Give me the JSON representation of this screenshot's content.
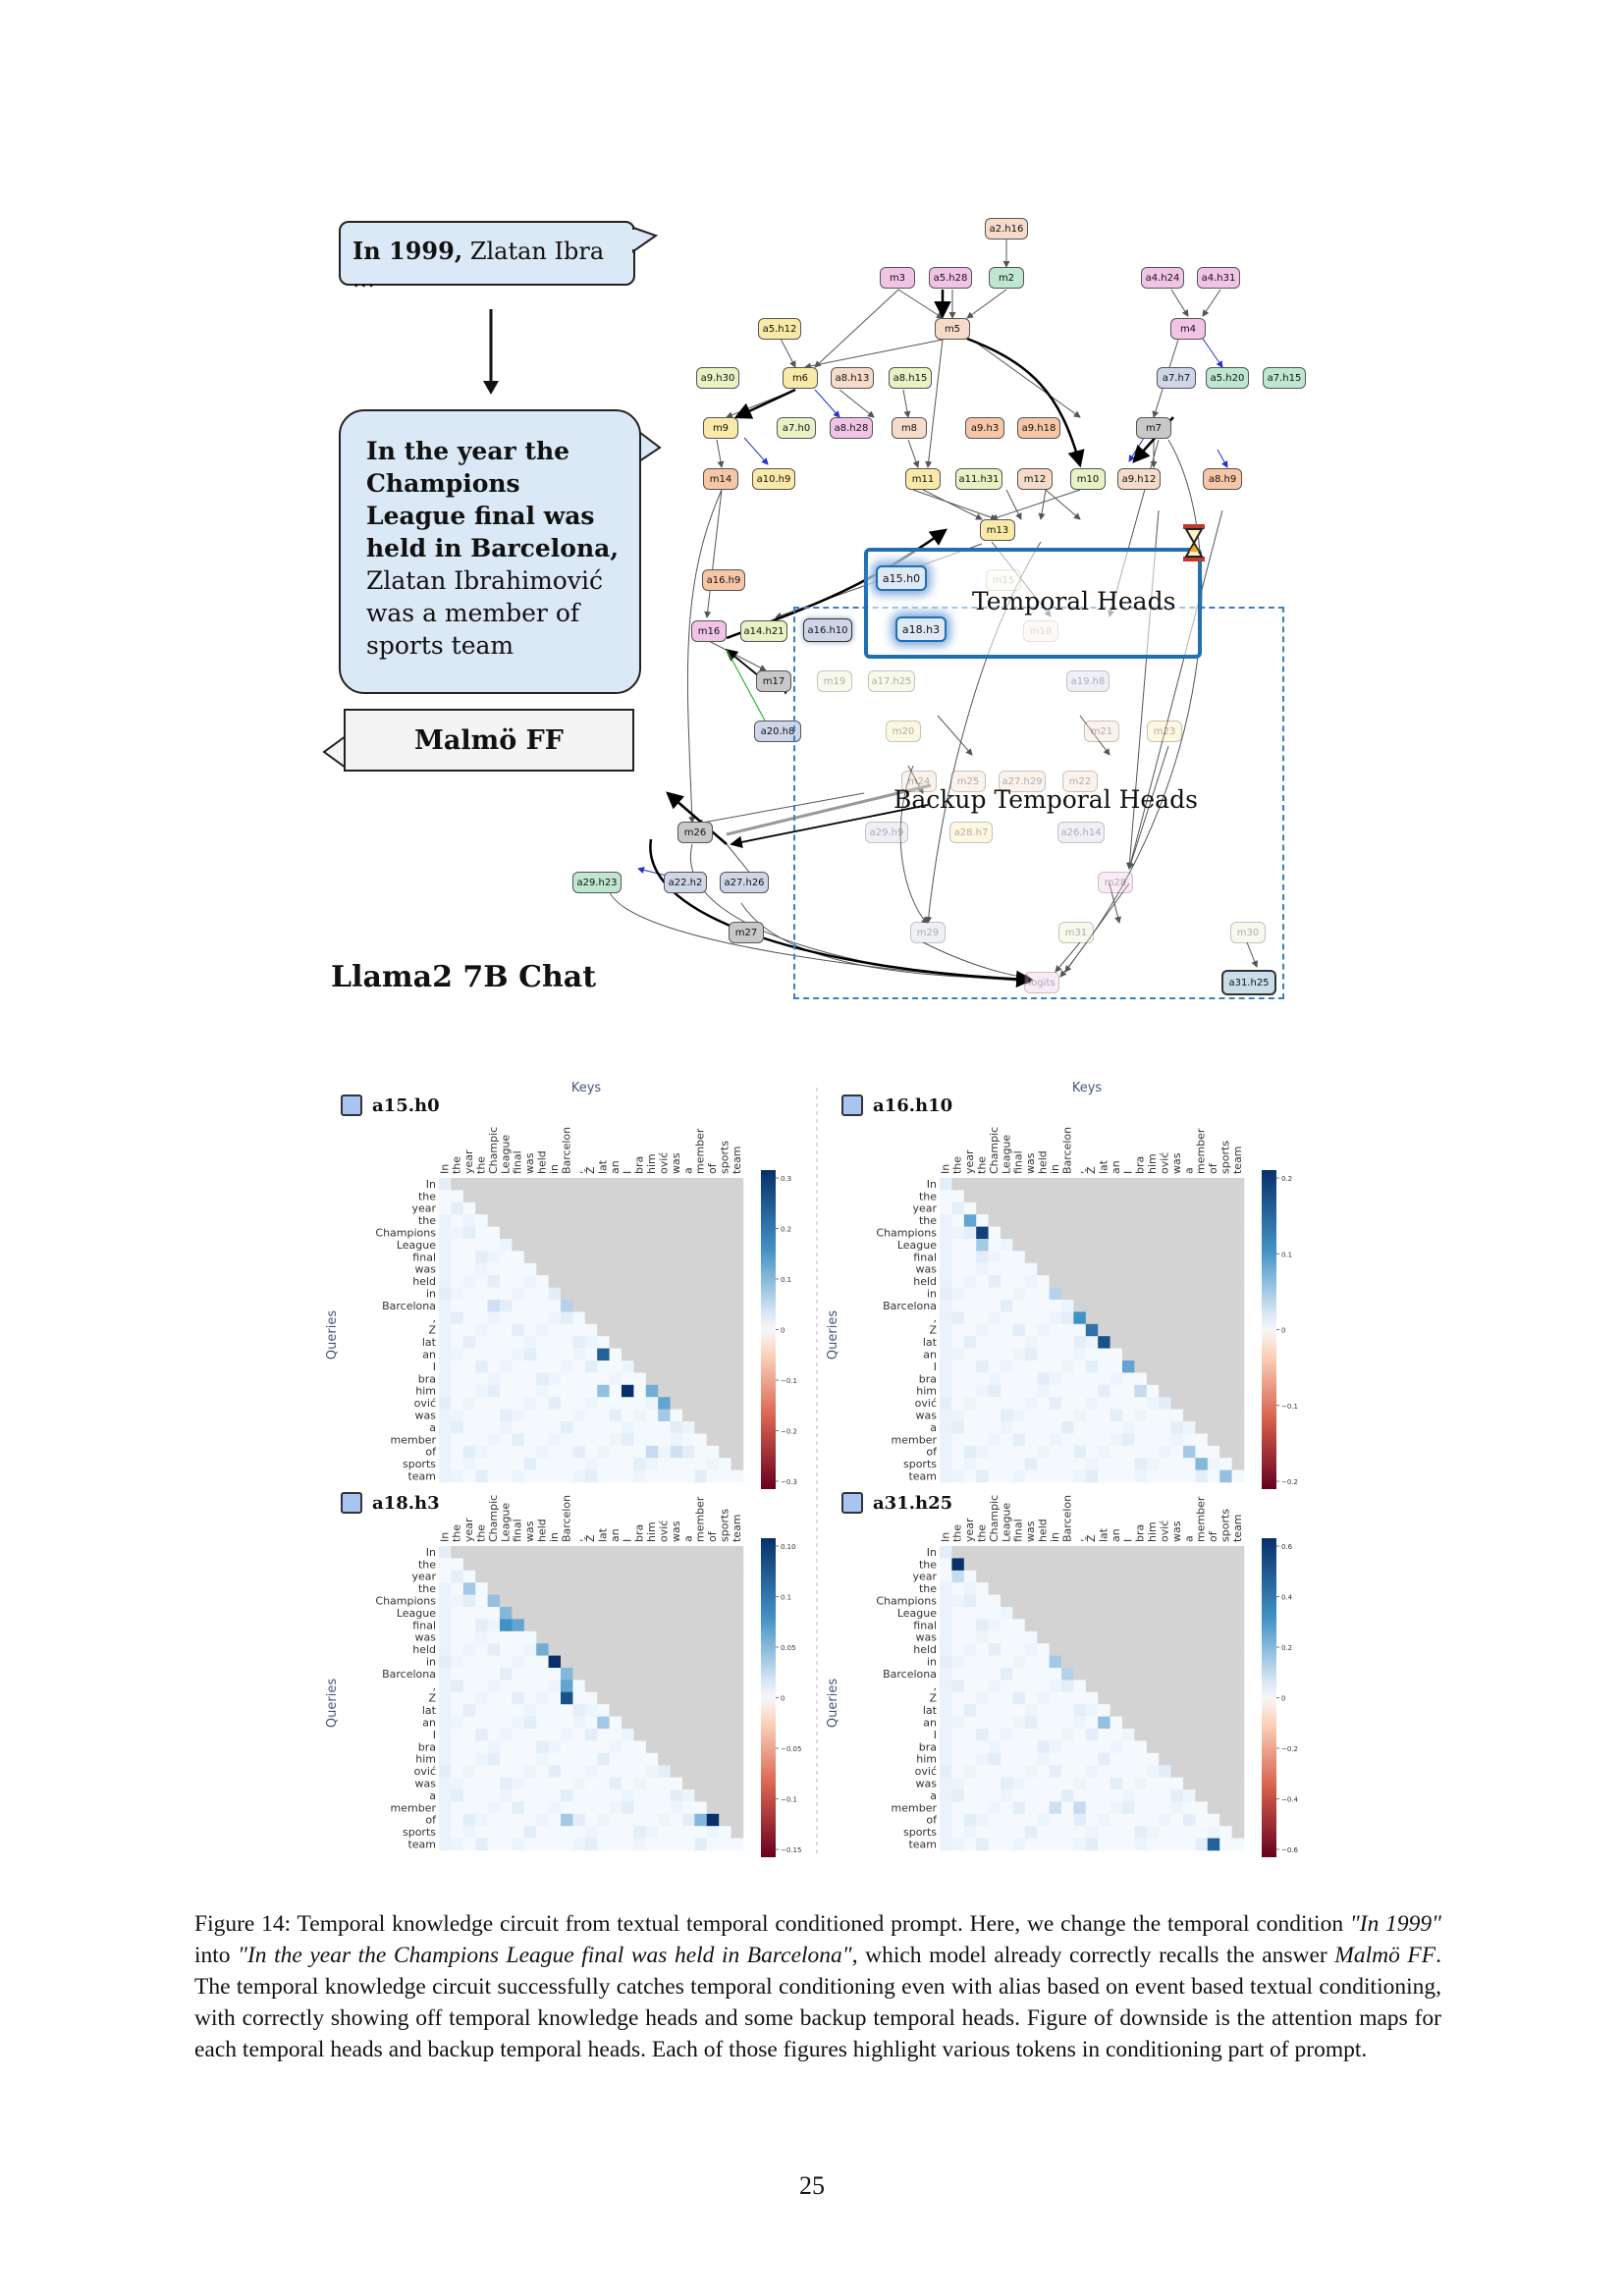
{
  "prompt": {
    "original_bold": "In 1999,",
    "original_rest": " Zlatan Ibra ...",
    "rewritten_bold": "In the year the Champions League final was held in Barcelona,",
    "rewritten_rest": " Zlatan Ibrahimović was a member of sports team",
    "answer": "Malmö FF"
  },
  "model_label": "Llama2 7B Chat",
  "circuit": {
    "temporal_heads_label": "Temporal Heads",
    "backup_heads_label": "Backup Temporal Heads",
    "temporal_nodes": [
      "a15.h0",
      "a18.h3"
    ],
    "nodes": [
      {
        "id": "a2.h16",
        "color": "#f6dcc8"
      },
      {
        "id": "m3",
        "color": "#f1c4e6"
      },
      {
        "id": "a5.h28",
        "color": "#f1c4e6"
      },
      {
        "id": "m2",
        "color": "#bfe6cf"
      },
      {
        "id": "a4.h24",
        "color": "#f1c4e6"
      },
      {
        "id": "a4.h31",
        "color": "#f1c4e6"
      },
      {
        "id": "a5.h12",
        "color": "#fbeaa7"
      },
      {
        "id": "m5",
        "color": "#f6dcc8"
      },
      {
        "id": "m4",
        "color": "#f1c4e6"
      },
      {
        "id": "a9.h30",
        "color": "#e7f3c5"
      },
      {
        "id": "m6",
        "color": "#fbeaa7"
      },
      {
        "id": "a8.h13",
        "color": "#f6dcc8"
      },
      {
        "id": "a8.h15",
        "color": "#e7f3c5"
      },
      {
        "id": "a7.h7",
        "color": "#cfd6e8"
      },
      {
        "id": "a5.h20",
        "color": "#bfe6cf"
      },
      {
        "id": "a7.h15",
        "color": "#bfe6cf"
      },
      {
        "id": "m9",
        "color": "#fbeaa7"
      },
      {
        "id": "a7.h0",
        "color": "#e7f3c5"
      },
      {
        "id": "a8.h28",
        "color": "#f1c4e6"
      },
      {
        "id": "m8",
        "color": "#f6dcc8"
      },
      {
        "id": "a9.h3",
        "color": "#f6c6a6"
      },
      {
        "id": "a9.h18",
        "color": "#f6c6a6"
      },
      {
        "id": "m7",
        "color": "#c8c8c8"
      },
      {
        "id": "m14",
        "color": "#f6c6a6"
      },
      {
        "id": "a10.h9",
        "color": "#fbeaa7"
      },
      {
        "id": "m11",
        "color": "#fbeaa7"
      },
      {
        "id": "a11.h31",
        "color": "#e7f3c5"
      },
      {
        "id": "m12",
        "color": "#f6dcc8"
      },
      {
        "id": "m10",
        "color": "#e7f3c5"
      },
      {
        "id": "a9.h12",
        "color": "#f6dcc8"
      },
      {
        "id": "a8.h9",
        "color": "#f6c6a6"
      },
      {
        "id": "m13",
        "color": "#fbeaa7"
      },
      {
        "id": "a16.h9",
        "color": "#f6c6a6"
      },
      {
        "id": "m16",
        "color": "#f1c4e6"
      },
      {
        "id": "a14.h21",
        "color": "#e7f3c5"
      },
      {
        "id": "a16.h10",
        "color": "#cfd6e8"
      },
      {
        "id": "m17",
        "color": "#c8c8c8"
      },
      {
        "id": "a20.h8",
        "color": "#cfd6e8"
      },
      {
        "id": "m26",
        "color": "#c8c8c8"
      },
      {
        "id": "a29.h23",
        "color": "#bfe6cf"
      },
      {
        "id": "a22.h2",
        "color": "#cfd6e8"
      },
      {
        "id": "a27.h26",
        "color": "#cfd6e8"
      },
      {
        "id": "m27",
        "color": "#c8c8c8"
      },
      {
        "id": "a31.h25",
        "color": "#c9dfe8"
      }
    ],
    "faded_nodes": [
      {
        "id": "m15",
        "color": "#e7f3c5"
      },
      {
        "id": "m18",
        "color": "#f6dcc8"
      },
      {
        "id": "m19",
        "color": "#e7f3c5"
      },
      {
        "id": "a17.h25",
        "color": "#e7f3c5"
      },
      {
        "id": "a19.h8",
        "color": "#cfd6e8"
      },
      {
        "id": "m20",
        "color": "#fbeaa7"
      },
      {
        "id": "m21",
        "color": "#f6dcc8"
      },
      {
        "id": "m23",
        "color": "#fbeaa7"
      },
      {
        "id": "m24",
        "color": "#f6dcc8"
      },
      {
        "id": "m25",
        "color": "#f6dcc8"
      },
      {
        "id": "a27.h29",
        "color": "#f6dcc8"
      },
      {
        "id": "m22",
        "color": "#f6dcc8"
      },
      {
        "id": "a29.h9",
        "color": "#cfd6e8"
      },
      {
        "id": "a28.h7",
        "color": "#fbeaa7"
      },
      {
        "id": "a26.h14",
        "color": "#cfd6e8"
      },
      {
        "id": "m28",
        "color": "#f1c4e6"
      },
      {
        "id": "m29",
        "color": "#cfd6e8"
      },
      {
        "id": "m31",
        "color": "#e7f3c5"
      },
      {
        "id": "m30",
        "color": "#e7f3c5"
      },
      {
        "id": "logits",
        "color": "#f1c4e6"
      }
    ]
  },
  "attention": {
    "top_axis_label": "Keys",
    "y_axis_label": "Queries",
    "tokens": [
      "In",
      "the",
      "year",
      "the",
      "Champions",
      "League",
      "final",
      "was",
      "held",
      "in",
      "Barcelona",
      ",",
      "Z",
      "lat",
      "an",
      "I",
      "bra",
      "him",
      "ović",
      "was",
      "a",
      "member",
      "of",
      "sports",
      "team"
    ],
    "key_tokens_short": [
      "In",
      "the",
      "year",
      "the",
      "Champic",
      "League",
      "final",
      "was",
      "held",
      "in",
      "Barcelon",
      ",",
      "Ž",
      "lat",
      "an",
      "I",
      "bra",
      "him",
      "ović",
      "was",
      "a",
      "member",
      "of",
      "sports",
      "team"
    ],
    "panels": [
      {
        "name": "a15.h0",
        "ticks": [
          "0.3",
          "0.2",
          "0.1",
          "0",
          "−0.1",
          "−0.2",
          "−0.3"
        ],
        "max": 0.3,
        "highlights": [
          [
            10,
            4,
            0.25
          ],
          [
            10,
            10,
            0.35
          ],
          [
            14,
            13,
            0.85
          ],
          [
            17,
            13,
            0.45
          ],
          [
            17,
            15,
            1.0
          ],
          [
            17,
            17,
            0.55
          ],
          [
            17,
            18,
            0.95
          ],
          [
            18,
            18,
            0.6
          ],
          [
            19,
            18,
            0.4
          ],
          [
            22,
            17,
            0.3
          ],
          [
            22,
            19,
            0.25
          ]
        ]
      },
      {
        "name": "a16.h10",
        "ticks": [
          "0.2",
          "0.1",
          "0",
          "−0.1",
          "−0.2"
        ],
        "max": 0.25,
        "highlights": [
          [
            3,
            2,
            0.6
          ],
          [
            4,
            3,
            0.95
          ],
          [
            5,
            3,
            0.4
          ],
          [
            9,
            9,
            0.35
          ],
          [
            9,
            10,
            0.55
          ],
          [
            11,
            11,
            0.7
          ],
          [
            12,
            12,
            0.8
          ],
          [
            13,
            13,
            0.9
          ],
          [
            15,
            15,
            0.6
          ],
          [
            17,
            16,
            0.3
          ],
          [
            22,
            20,
            0.4
          ],
          [
            23,
            21,
            0.5
          ],
          [
            24,
            23,
            0.45
          ]
        ]
      },
      {
        "name": "a18.h3",
        "ticks": [
          "0.10",
          "0.1",
          "0.05",
          "0",
          "−0.05",
          "−0.1",
          "−0.15"
        ],
        "max": 0.12,
        "highlights": [
          [
            3,
            2,
            0.4
          ],
          [
            4,
            4,
            0.45
          ],
          [
            5,
            5,
            0.5
          ],
          [
            6,
            5,
            0.7
          ],
          [
            6,
            6,
            0.6
          ],
          [
            8,
            8,
            0.55
          ],
          [
            9,
            9,
            1.0
          ],
          [
            10,
            10,
            0.5
          ],
          [
            11,
            10,
            0.6
          ],
          [
            12,
            10,
            0.9
          ],
          [
            14,
            13,
            0.4
          ],
          [
            22,
            10,
            0.4
          ],
          [
            22,
            21,
            0.5
          ],
          [
            22,
            22,
            1.0
          ]
        ]
      },
      {
        "name": "a31.h25",
        "ticks": [
          "0.6",
          "0.4",
          "0.2",
          "0",
          "−0.2",
          "−0.4",
          "−0.6"
        ],
        "max": 0.7,
        "highlights": [
          [
            1,
            1,
            1.0
          ],
          [
            2,
            1,
            0.3
          ],
          [
            9,
            9,
            0.4
          ],
          [
            10,
            10,
            0.35
          ],
          [
            14,
            13,
            0.45
          ],
          [
            21,
            9,
            0.25
          ],
          [
            21,
            11,
            0.3
          ],
          [
            24,
            22,
            0.85
          ]
        ]
      }
    ]
  },
  "caption": {
    "fig_label": "Figure 14:",
    "text_1": " Temporal knowledge circuit from textual temporal conditioned prompt. Here, we change the temporal condition ",
    "ital_1": "\"In 1999\"",
    "text_2": " into ",
    "ital_2": "\"In the year the Champions League final was held in Barcelona\"",
    "text_3": ", which model already correctly recalls the answer ",
    "ital_3": "Malmö FF",
    "text_4": ". The temporal knowledge circuit successfully catches temporal conditioning even with alias based on event based textual conditioning, with correctly showing off temporal knowledge heads and some backup temporal heads. Figure of downside is the attention maps for each temporal heads and backup temporal heads. Each of those figures highlight various tokens in conditioning part of prompt."
  },
  "page_number": "25"
}
